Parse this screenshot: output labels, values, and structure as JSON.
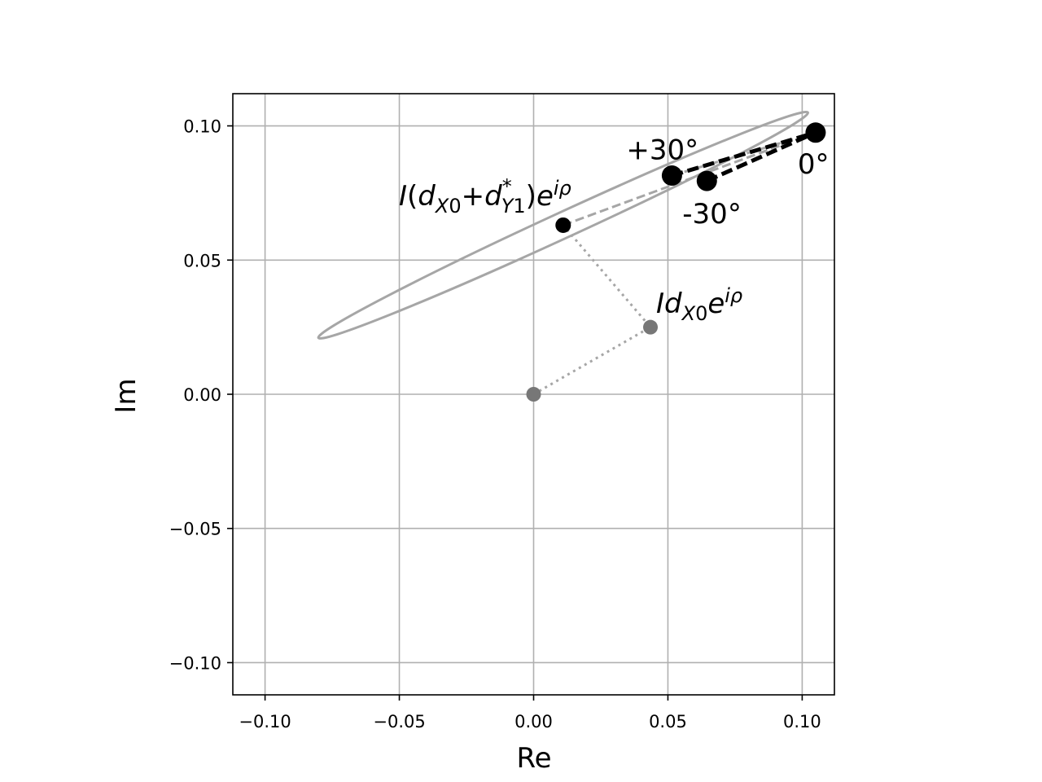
{
  "chart_data": {
    "type": "scatter",
    "xlabel": "Re",
    "ylabel": "Im",
    "xlim": [
      -0.112,
      0.112
    ],
    "ylim": [
      -0.112,
      0.112
    ],
    "grid": true,
    "x_ticks": [
      -0.1,
      -0.05,
      0.0,
      0.05,
      0.1
    ],
    "y_ticks": [
      -0.1,
      -0.05,
      0.0,
      0.05,
      0.1
    ],
    "x_tick_labels": [
      "−0.10",
      "−0.05",
      "0.00",
      "0.05",
      "0.10"
    ],
    "y_tick_labels": [
      "−0.10",
      "−0.05",
      "0.00",
      "0.05",
      "0.10"
    ],
    "ellipse": {
      "center": [
        0.011,
        0.063
      ],
      "semi_major": 0.1003,
      "semi_minor": 0.0048,
      "angle_deg": 24.7,
      "color": "#a6a6a6"
    },
    "gray_points": [
      {
        "x": 0.0,
        "y": 0.0
      },
      {
        "x": 0.0435,
        "y": 0.025
      }
    ],
    "center_point": {
      "x": 0.011,
      "y": 0.063
    },
    "big_points": [
      {
        "label": "+30°",
        "x": 0.0515,
        "y": 0.0815
      },
      {
        "label": "0°",
        "x": 0.105,
        "y": 0.0975
      },
      {
        "label": "-30°",
        "x": 0.0645,
        "y": 0.0795
      }
    ],
    "dotted_path": [
      [
        0.0,
        0.0
      ],
      [
        0.0435,
        0.025
      ],
      [
        0.011,
        0.063
      ]
    ],
    "gray_dashed_lines": [
      {
        "from": [
          0.011,
          0.063
        ],
        "to": [
          0.105,
          0.0975
        ]
      },
      {
        "from": [
          0.0515,
          0.0815
        ],
        "to": [
          0.105,
          0.0975
        ]
      }
    ],
    "black_dashed_lines": [
      {
        "from": [
          0.0515,
          0.0815
        ],
        "to": [
          0.105,
          0.0975
        ]
      },
      {
        "from": [
          0.0645,
          0.0795
        ],
        "to": [
          0.105,
          0.0975
        ]
      }
    ],
    "annotations": {
      "ellipse_label": "I(d_X0+d*_Y1)e^iρ",
      "point_label": "Id_X0e^iρ"
    },
    "colors": {
      "grid": "#b0b0b0",
      "ellipse": "#a6a6a6",
      "gray_point": "#777777",
      "black": "#000000"
    }
  }
}
